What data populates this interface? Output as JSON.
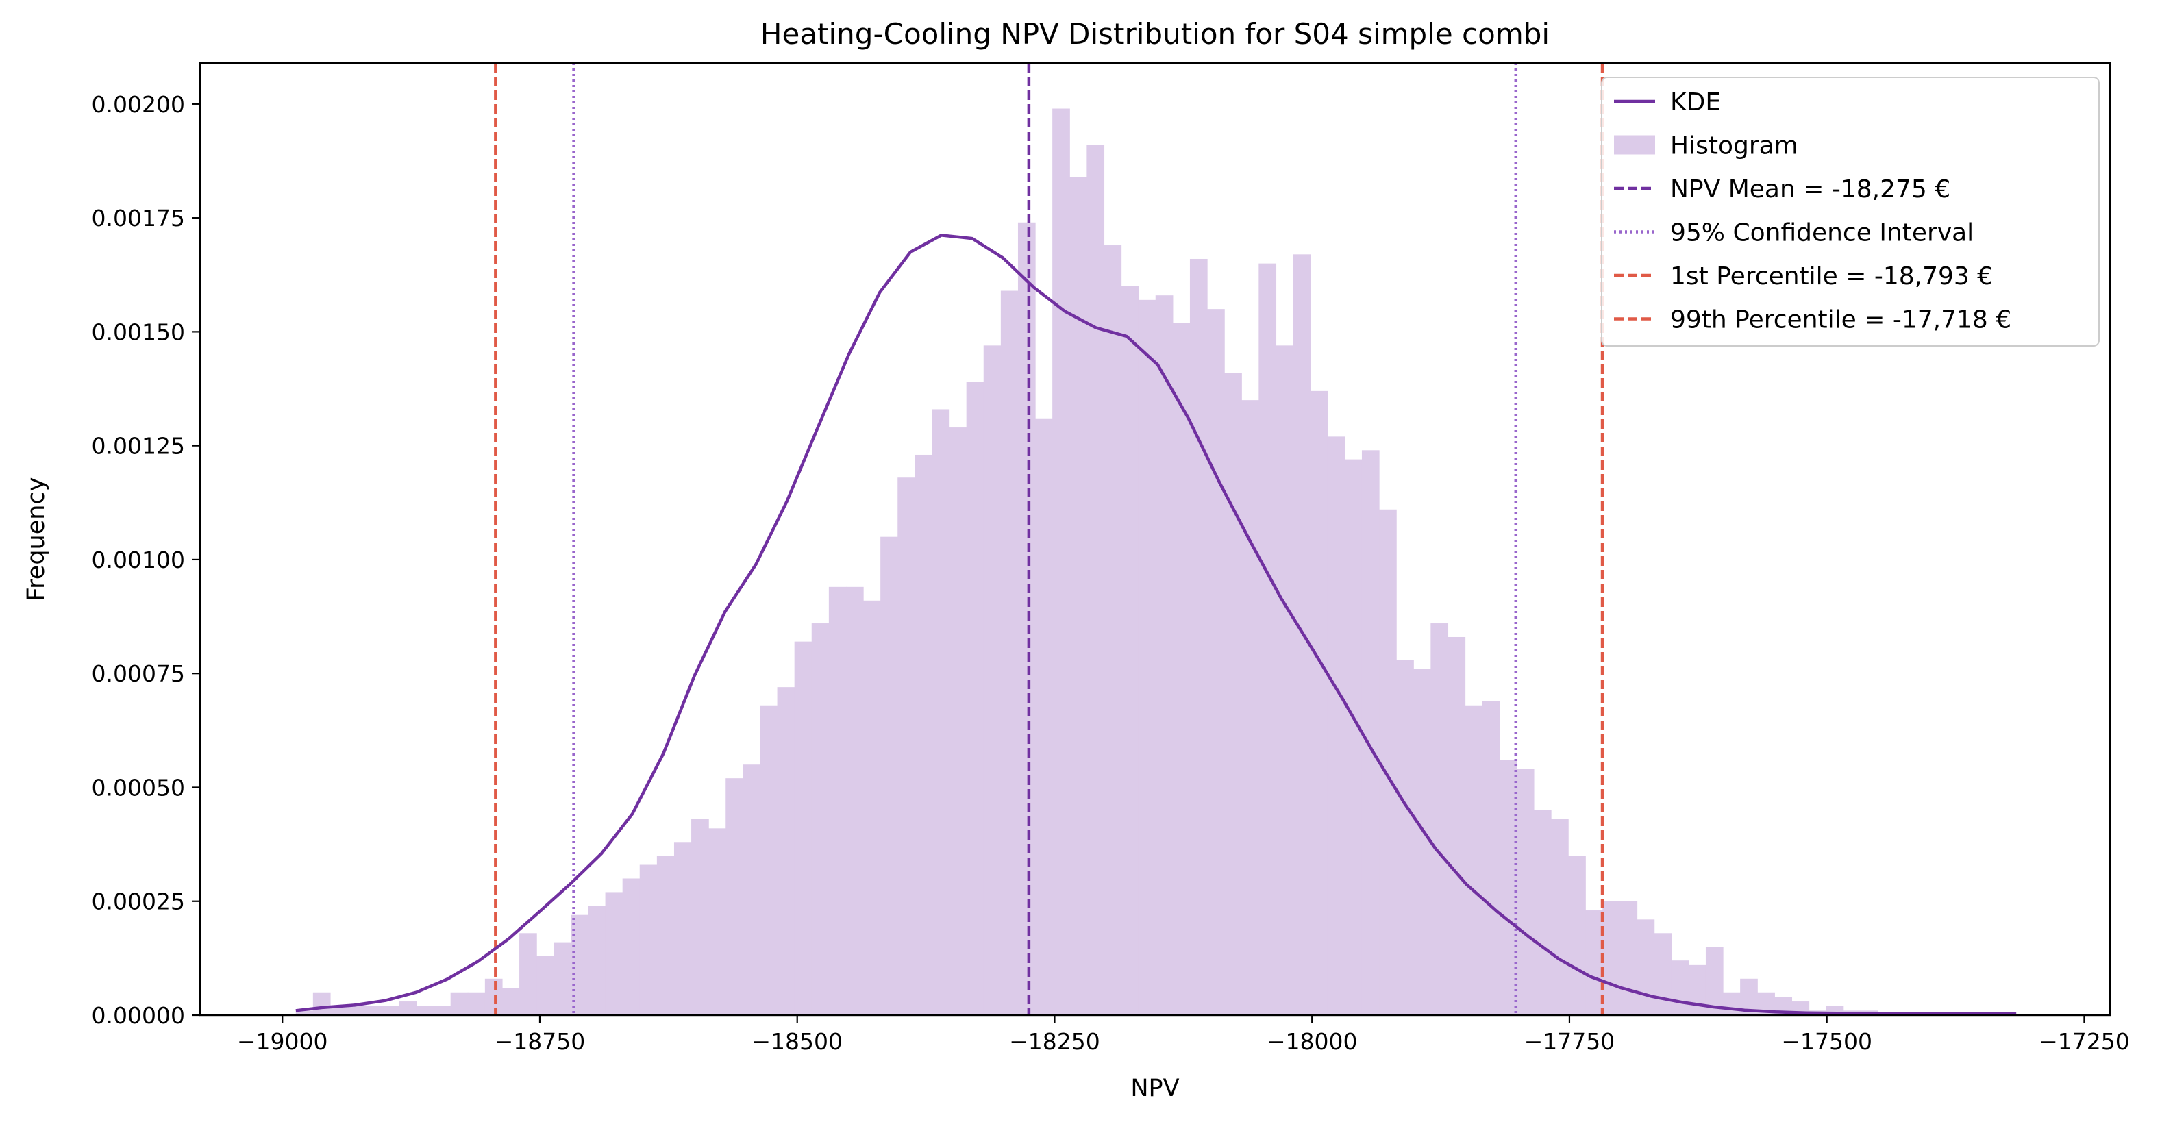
{
  "chart_data": {
    "type": "bar",
    "title": "Heating-Cooling NPV Distribution for S04 simple combi",
    "xlabel": "NPV",
    "ylabel": "Frequency",
    "xlim": [
      -19080,
      -17225
    ],
    "ylim": [
      0,
      0.00209
    ],
    "x_ticks": [
      -19000,
      -18750,
      -18500,
      -18250,
      -18000,
      -17750,
      -17500,
      -17250
    ],
    "x_tick_labels": [
      "−19000",
      "−18750",
      "−18500",
      "−18250",
      "−18000",
      "−17750",
      "−17500",
      "−17250"
    ],
    "y_ticks": [
      0,
      0.00025,
      0.0005,
      0.00075,
      0.001,
      0.00125,
      0.0015,
      0.00175,
      0.002
    ],
    "y_tick_labels": [
      "0.00000",
      "0.00025",
      "0.00050",
      "0.00075",
      "0.00100",
      "0.00125",
      "0.00150",
      "0.00175",
      "0.00200"
    ],
    "grid": false,
    "legend_position": "top-right",
    "histogram": {
      "name": "Histogram",
      "color": "#dccbe9",
      "x_start": -18987,
      "bin_width": 16.7,
      "values": [
        1e-05,
        5e-05,
        2e-05,
        2e-05,
        2e-05,
        2e-05,
        3e-05,
        2e-05,
        2e-05,
        5e-05,
        5e-05,
        8e-05,
        6e-05,
        0.00018,
        0.00013,
        0.00016,
        0.00022,
        0.00024,
        0.00027,
        0.0003,
        0.00033,
        0.00035,
        0.00038,
        0.00043,
        0.00041,
        0.00052,
        0.00055,
        0.00068,
        0.00072,
        0.00082,
        0.00086,
        0.00094,
        0.00094,
        0.00091,
        0.00105,
        0.00118,
        0.00123,
        0.00133,
        0.00129,
        0.00139,
        0.00147,
        0.00159,
        0.00174,
        0.00131,
        0.00199,
        0.00184,
        0.00191,
        0.00169,
        0.0016,
        0.00157,
        0.00158,
        0.00152,
        0.00166,
        0.00155,
        0.00141,
        0.00135,
        0.00165,
        0.00147,
        0.00167,
        0.00137,
        0.00127,
        0.00122,
        0.00124,
        0.00111,
        0.00078,
        0.00076,
        0.00086,
        0.00083,
        0.00068,
        0.00069,
        0.00056,
        0.00054,
        0.00045,
        0.00043,
        0.00035,
        0.00023,
        0.00025,
        0.00025,
        0.00021,
        0.00018,
        0.00012,
        0.00011,
        0.00015,
        5e-05,
        8e-05,
        5e-05,
        4e-05,
        3e-05,
        1e-05,
        2e-05,
        1e-05,
        1e-05,
        0.0,
        0.0,
        0.0,
        0.0,
        0.0,
        0.0,
        0.0,
        0.0
      ]
    },
    "kde": {
      "name": "KDE",
      "color": "#7030a0",
      "x": [
        -18987,
        -18960,
        -18930,
        -18900,
        -18870,
        -18840,
        -18810,
        -18780,
        -18750,
        -18720,
        -18690,
        -18660,
        -18630,
        -18600,
        -18570,
        -18540,
        -18510,
        -18480,
        -18450,
        -18420,
        -18390,
        -18360,
        -18330,
        -18300,
        -18270,
        -18240,
        -18210,
        -18180,
        -18150,
        -18120,
        -18090,
        -18060,
        -18030,
        -18000,
        -17970,
        -17940,
        -17910,
        -17880,
        -17850,
        -17820,
        -17790,
        -17760,
        -17730,
        -17700,
        -17670,
        -17640,
        -17610,
        -17580,
        -17550,
        -17520,
        -17490,
        -17460,
        -17430,
        -17400,
        -17370,
        -17340,
        -17316
      ],
      "y": [
        1e-05,
        1.7e-05,
        2.2e-05,
        3.2e-05,
        5e-05,
        7.9e-05,
        0.000118,
        0.000168,
        0.000228,
        0.000289,
        0.000355,
        0.000442,
        0.000574,
        0.000744,
        0.000886,
        0.00099,
        0.001128,
        0.00129,
        0.00145,
        0.001586,
        0.001675,
        0.001712,
        0.001705,
        0.001662,
        0.001597,
        0.001545,
        0.001509,
        0.00149,
        0.001428,
        0.00131,
        0.00117,
        0.00104,
        0.000915,
        0.000805,
        0.000693,
        0.000575,
        0.000464,
        0.000365,
        0.000287,
        0.000227,
        0.000173,
        0.000123,
        8.5e-05,
        6e-05,
        4.1e-05,
        2.8e-05,
        1.8e-05,
        1.1e-05,
        7e-06,
        5e-06,
        4e-06,
        4e-06,
        4e-06,
        4e-06,
        4e-06,
        4e-06,
        4e-06
      ]
    },
    "vertical_lines": [
      {
        "name": "NPV Mean = -18,275 €",
        "x": -18275,
        "color": "#7030a0",
        "style": "dashed"
      },
      {
        "name": "95% Confidence Interval",
        "x": -18717,
        "color": "#9966cc",
        "style": "dotted"
      },
      {
        "name": "95% Confidence Interval",
        "x": -17802,
        "color": "#9966cc",
        "style": "dotted"
      },
      {
        "name": "1st Percentile = -18,793 €",
        "x": -18793,
        "color": "#e05a47",
        "style": "dashed"
      },
      {
        "name": "99th Percentile = -17,718 €",
        "x": -17718,
        "color": "#e05a47",
        "style": "dashed"
      }
    ],
    "legend": [
      {
        "label": "KDE",
        "kind": "line",
        "color": "#7030a0",
        "style": "solid"
      },
      {
        "label": "Histogram",
        "kind": "patch",
        "color": "#dccbe9",
        "style": "solid"
      },
      {
        "label": "NPV Mean = -18,275 €",
        "kind": "line",
        "color": "#7030a0",
        "style": "dashed"
      },
      {
        "label": "95% Confidence Interval",
        "kind": "line",
        "color": "#9966cc",
        "style": "dotted"
      },
      {
        "label": "1st Percentile = -18,793 €",
        "kind": "line",
        "color": "#e05a47",
        "style": "dashed"
      },
      {
        "label": "99th Percentile = -17,718 €",
        "kind": "line",
        "color": "#e05a47",
        "style": "dashed"
      }
    ]
  }
}
